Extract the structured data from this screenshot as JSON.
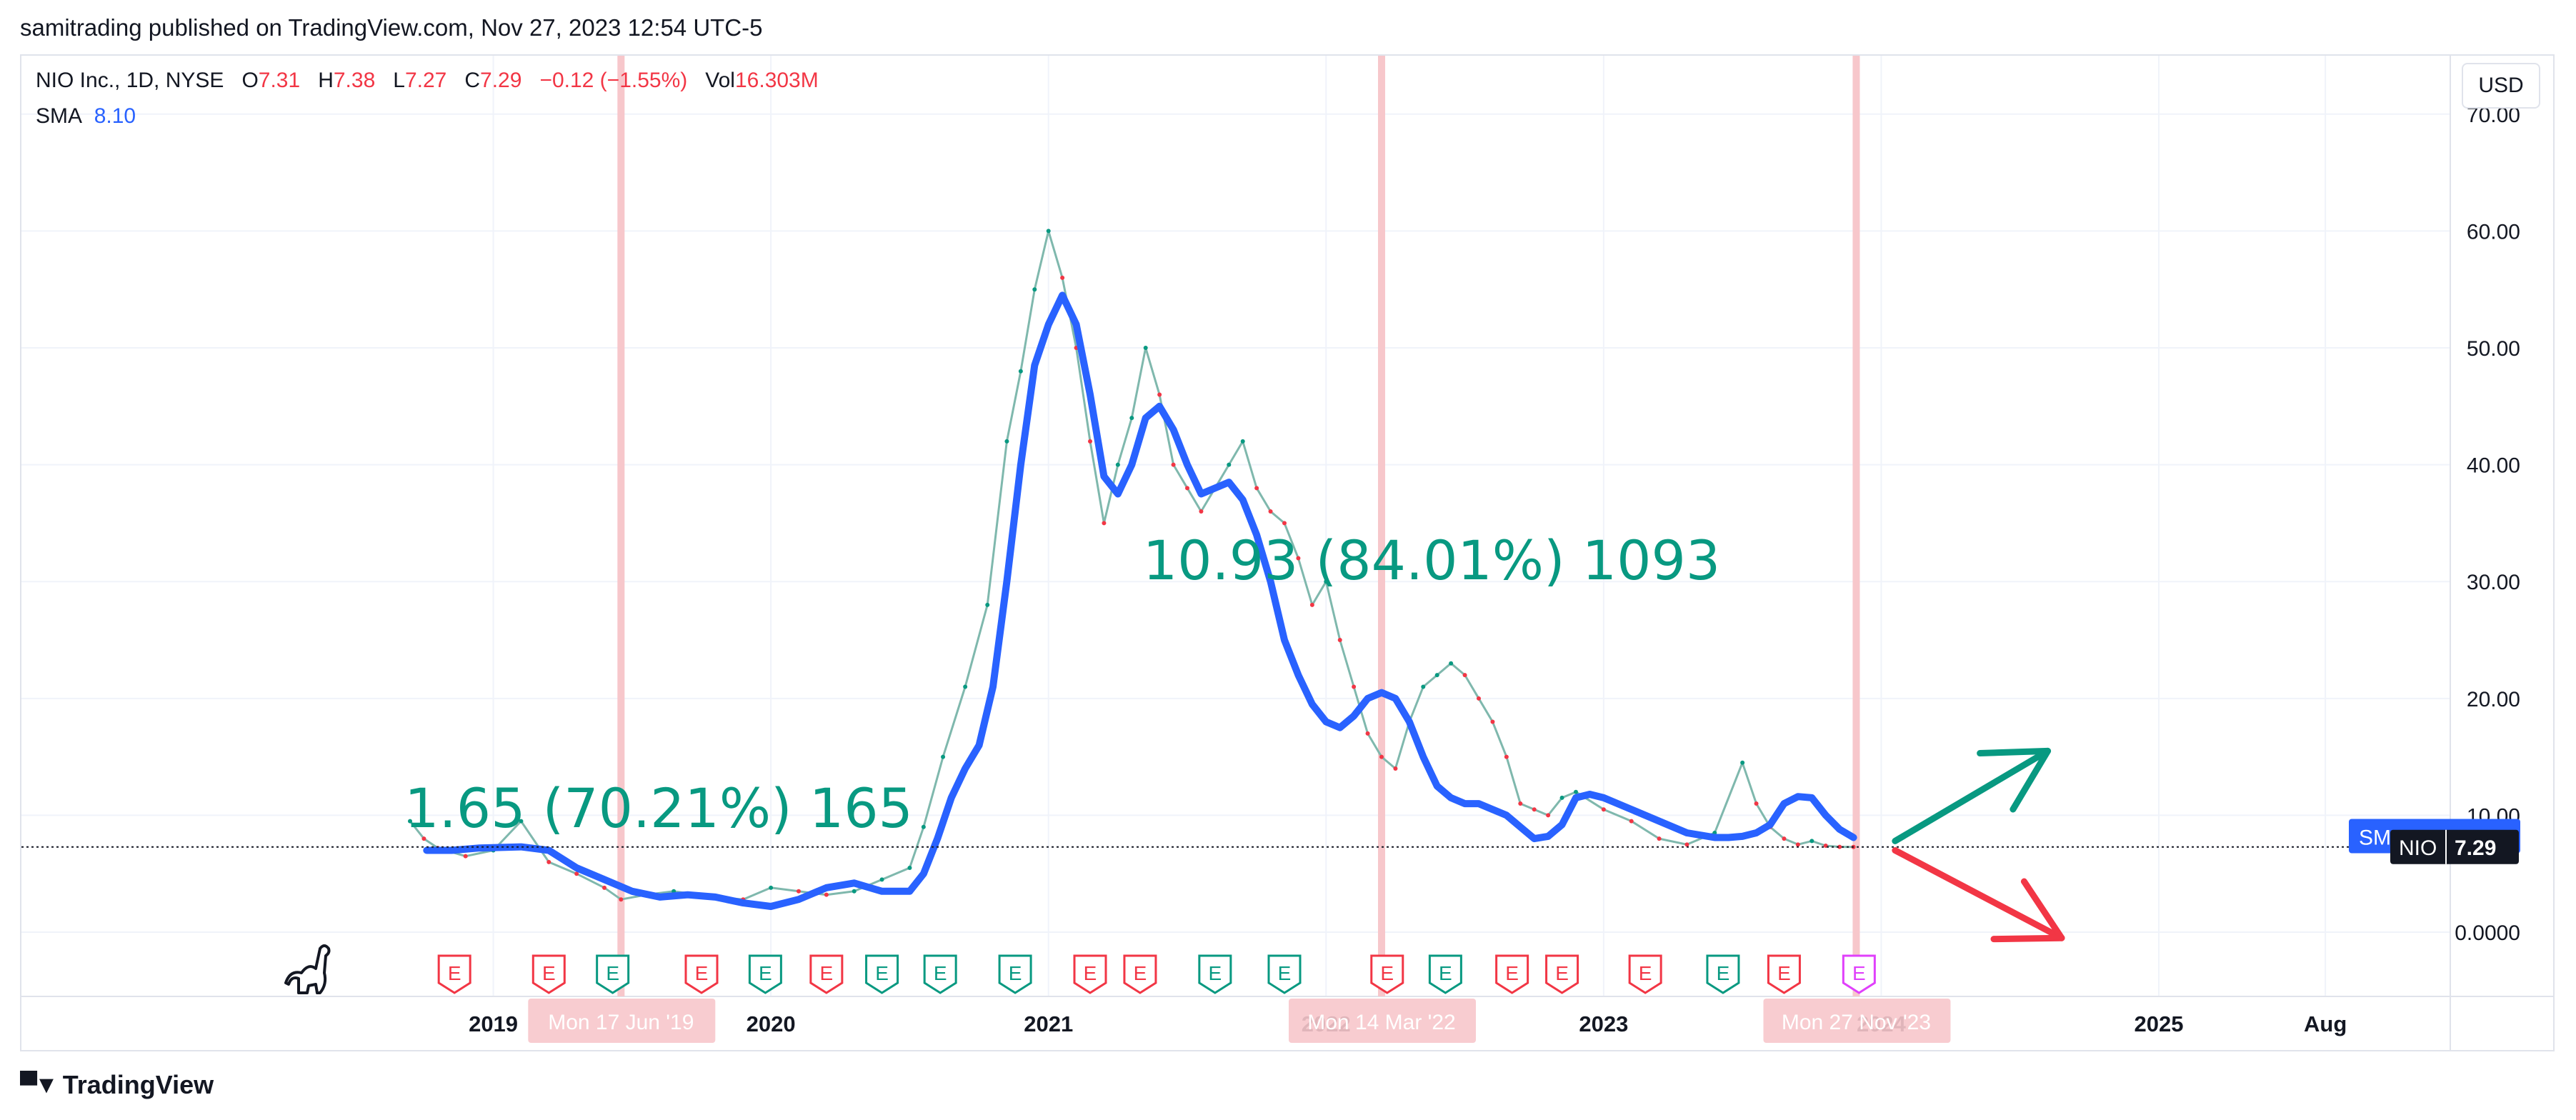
{
  "header": {
    "published_text": "samitrading published on TradingView.com, Nov 27, 2023 12:54 UTC-5"
  },
  "legend": {
    "symbol_line": "NIO Inc., 1D, NYSE",
    "open_label": "O",
    "open": "7.31",
    "high_label": "H",
    "high": "7.38",
    "low_label": "L",
    "low": "7.27",
    "close_label": "C",
    "close": "7.29",
    "change": "−0.12 (−1.55%)",
    "vol_label": "Vol",
    "vol": "16.303M"
  },
  "sma_legend": {
    "label": "SMA",
    "value": "8.10"
  },
  "currency_button": "USD",
  "footer": {
    "brand": "TradingView"
  },
  "colors": {
    "up": "#089981",
    "down": "#f23645",
    "sma": "#2962ff",
    "vline": "#f7c7cb",
    "annotation": "#089981"
  },
  "icons": [
    "tradingview-logo-icon",
    "dinosaur-icon",
    "earnings-icon",
    "up-arrow-icon",
    "down-arrow-icon"
  ],
  "chart_data": {
    "type": "line",
    "symbol": "NIO",
    "x_axis": {
      "ticks": [
        {
          "label": "2019",
          "t": 2019.0
        },
        {
          "label": "2020",
          "t": 2020.0
        },
        {
          "label": "2021",
          "t": 2021.0
        },
        {
          "label": "2022",
          "t": 2022.0
        },
        {
          "label": "2023",
          "t": 2023.0
        },
        {
          "label": "2024",
          "t": 2024.0
        },
        {
          "label": "2025",
          "t": 2025.0
        },
        {
          "label": "Aug",
          "t": 2025.6
        }
      ],
      "range": [
        2017.3,
        2026.05
      ]
    },
    "y_axis": {
      "ticks": [
        "0.0000",
        "10.00",
        "20.00",
        "30.00",
        "40.00",
        "50.00",
        "60.00",
        "70.00"
      ],
      "tick_values": [
        0,
        10,
        20,
        30,
        40,
        50,
        60,
        70
      ],
      "range": [
        -5.5,
        75
      ]
    },
    "price_series": {
      "name": "NIO",
      "t": [
        2018.7,
        2018.75,
        2018.8,
        2018.9,
        2019.0,
        2019.1,
        2019.2,
        2019.3,
        2019.4,
        2019.46,
        2019.55,
        2019.65,
        2019.8,
        2019.9,
        2020.0,
        2020.1,
        2020.2,
        2020.3,
        2020.4,
        2020.5,
        2020.55,
        2020.62,
        2020.7,
        2020.78,
        2020.85,
        2020.9,
        2020.95,
        2021.0,
        2021.05,
        2021.1,
        2021.15,
        2021.2,
        2021.25,
        2021.3,
        2021.35,
        2021.4,
        2021.45,
        2021.5,
        2021.55,
        2021.6,
        2021.65,
        2021.7,
        2021.75,
        2021.8,
        2021.85,
        2021.9,
        2021.95,
        2022.0,
        2022.05,
        2022.1,
        2022.15,
        2022.2,
        2022.25,
        2022.3,
        2022.35,
        2022.4,
        2022.45,
        2022.5,
        2022.55,
        2022.6,
        2022.65,
        2022.7,
        2022.75,
        2022.8,
        2022.85,
        2022.9,
        2023.0,
        2023.1,
        2023.2,
        2023.3,
        2023.4,
        2023.5,
        2023.55,
        2023.6,
        2023.65,
        2023.7,
        2023.75,
        2023.8,
        2023.85,
        2023.9
      ],
      "values": [
        9.5,
        8.0,
        7.2,
        6.5,
        7.0,
        9.5,
        6.0,
        5.0,
        3.8,
        2.8,
        3.2,
        3.5,
        3.0,
        2.8,
        3.8,
        3.5,
        3.2,
        3.5,
        4.5,
        5.5,
        9.0,
        15.0,
        21.0,
        28.0,
        42.0,
        48.0,
        55.0,
        60.0,
        56.0,
        50.0,
        42.0,
        35.0,
        40.0,
        44.0,
        50.0,
        46.0,
        40.0,
        38.0,
        36.0,
        38.0,
        40.0,
        42.0,
        38.0,
        36.0,
        35.0,
        32.0,
        28.0,
        30.0,
        25.0,
        21.0,
        17.0,
        15.0,
        14.0,
        18.0,
        21.0,
        22.0,
        23.0,
        22.0,
        20.0,
        18.0,
        15.0,
        11.0,
        10.5,
        10.0,
        11.5,
        12.0,
        10.5,
        9.5,
        8.0,
        7.5,
        8.5,
        14.5,
        11.0,
        9.0,
        8.0,
        7.5,
        7.8,
        7.4,
        7.3,
        7.29
      ]
    },
    "sma_series": {
      "name": "SMA",
      "t": [
        2018.76,
        2018.85,
        2018.95,
        2019.1,
        2019.2,
        2019.3,
        2019.4,
        2019.5,
        2019.6,
        2019.7,
        2019.8,
        2019.9,
        2020.0,
        2020.1,
        2020.2,
        2020.3,
        2020.4,
        2020.5,
        2020.55,
        2020.6,
        2020.65,
        2020.7,
        2020.75,
        2020.8,
        2020.85,
        2020.9,
        2020.95,
        2021.0,
        2021.05,
        2021.1,
        2021.15,
        2021.2,
        2021.25,
        2021.3,
        2021.35,
        2021.4,
        2021.45,
        2021.5,
        2021.55,
        2021.6,
        2021.65,
        2021.7,
        2021.75,
        2021.8,
        2021.85,
        2021.9,
        2021.95,
        2022.0,
        2022.05,
        2022.1,
        2022.15,
        2022.2,
        2022.25,
        2022.3,
        2022.35,
        2022.4,
        2022.45,
        2022.5,
        2022.55,
        2022.6,
        2022.65,
        2022.7,
        2022.75,
        2022.8,
        2022.85,
        2022.9,
        2022.95,
        2023.0,
        2023.1,
        2023.2,
        2023.3,
        2023.4,
        2023.45,
        2023.5,
        2023.55,
        2023.6,
        2023.65,
        2023.7,
        2023.75,
        2023.8,
        2023.85,
        2023.9
      ],
      "values": [
        7.0,
        7.0,
        7.2,
        7.3,
        7.0,
        5.5,
        4.5,
        3.5,
        3.0,
        3.2,
        3.0,
        2.5,
        2.2,
        2.8,
        3.8,
        4.2,
        3.5,
        3.5,
        5.0,
        8.0,
        11.5,
        14.0,
        16.0,
        21.0,
        30.0,
        40.0,
        48.5,
        52.0,
        54.5,
        52.0,
        46.0,
        39.0,
        37.5,
        40.0,
        44.0,
        45.0,
        43.0,
        40.0,
        37.5,
        38.0,
        38.5,
        37.0,
        34.0,
        30.0,
        25.0,
        22.0,
        19.5,
        18.0,
        17.5,
        18.5,
        20.0,
        20.5,
        20.0,
        18.0,
        15.0,
        12.5,
        11.5,
        11.0,
        11.0,
        10.5,
        10.0,
        9.0,
        8.0,
        8.2,
        9.2,
        11.5,
        11.8,
        11.5,
        10.5,
        9.5,
        8.5,
        8.1,
        8.1,
        8.2,
        8.5,
        9.2,
        11.0,
        11.6,
        11.5,
        10.0,
        8.8,
        8.1
      ]
    },
    "last_price": "7.29",
    "price_labels": [
      "SMA",
      "NIO"
    ],
    "annotations": [
      {
        "text": "1.65 (70.21%) 165",
        "t": 2018.68,
        "y": 9.0
      },
      {
        "text": "10.93 (84.01%) 1093",
        "t": 2021.34,
        "y": 30.2
      }
    ],
    "vertical_markers": [
      {
        "t": 2019.46,
        "label": "Mon 17 Jun '19"
      },
      {
        "t": 2022.2,
        "label": "Mon 14 Mar '22"
      },
      {
        "t": 2023.91,
        "label": "Mon 27 Nov '23"
      }
    ],
    "earnings_events": [
      {
        "t": 2018.86,
        "color": "#f23645"
      },
      {
        "t": 2019.2,
        "color": "#f23645"
      },
      {
        "t": 2019.43,
        "color": "#089981"
      },
      {
        "t": 2019.75,
        "color": "#f23645"
      },
      {
        "t": 2019.98,
        "color": "#089981"
      },
      {
        "t": 2020.2,
        "color": "#f23645"
      },
      {
        "t": 2020.4,
        "color": "#089981"
      },
      {
        "t": 2020.61,
        "color": "#089981"
      },
      {
        "t": 2020.88,
        "color": "#089981"
      },
      {
        "t": 2021.15,
        "color": "#f23645"
      },
      {
        "t": 2021.33,
        "color": "#f23645"
      },
      {
        "t": 2021.6,
        "color": "#089981"
      },
      {
        "t": 2021.85,
        "color": "#089981"
      },
      {
        "t": 2022.22,
        "color": "#f23645"
      },
      {
        "t": 2022.43,
        "color": "#089981"
      },
      {
        "t": 2022.67,
        "color": "#f23645"
      },
      {
        "t": 2022.85,
        "color": "#f23645"
      },
      {
        "t": 2023.15,
        "color": "#f23645"
      },
      {
        "t": 2023.43,
        "color": "#089981"
      },
      {
        "t": 2023.65,
        "color": "#f23645"
      },
      {
        "t": 2023.92,
        "color": "#e040fb"
      }
    ],
    "earnings_label": "E",
    "arrows": [
      {
        "kind": "up",
        "color": "#089981",
        "from": [
          2024.05,
          7.8
        ],
        "to": [
          2024.6,
          15.5
        ]
      },
      {
        "kind": "down",
        "color": "#f23645",
        "from": [
          2024.05,
          7.0
        ],
        "to": [
          2024.65,
          -0.5
        ]
      }
    ]
  }
}
